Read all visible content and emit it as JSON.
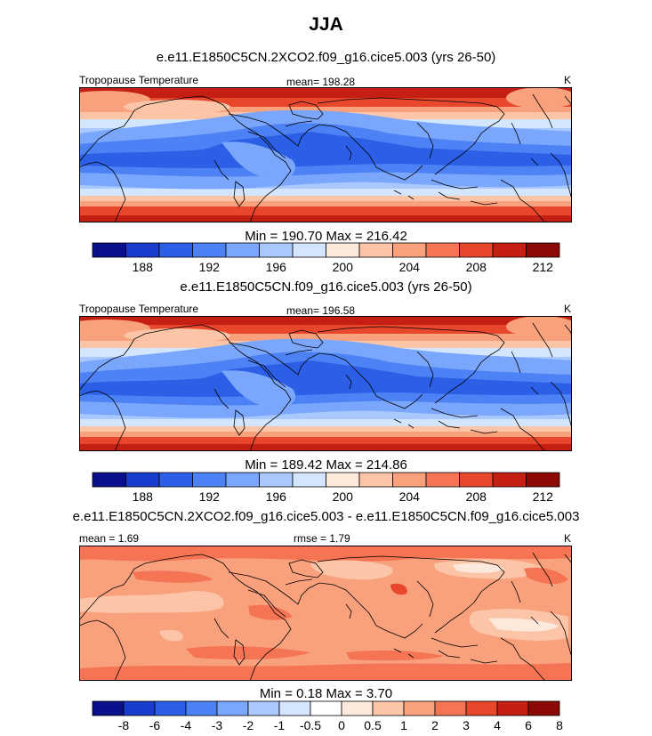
{
  "title": "JJA",
  "chart_data": [
    {
      "type": "heatmap",
      "title": "e.e11.E1850C5CN.2XCO2.f09_g16.cice5.003 (yrs 26-50)",
      "variable": "Tropopause Temperature",
      "units": "K",
      "mean_text": "mean= 198.28",
      "minmax_text": "Min = 190.70 Max = 216.42",
      "min": 190.7,
      "max": 216.42,
      "colorbar_ticks": [
        "188",
        "192",
        "196",
        "200",
        "204",
        "208",
        "212"
      ],
      "colors": [
        "#0a0f8c",
        "#1a3ccc",
        "#2a5fe6",
        "#4c82f5",
        "#7aa6fb",
        "#a9c8fd",
        "#d4e6fe",
        "#fde8dc",
        "#fcc5a8",
        "#f9a07c",
        "#f57453",
        "#e8472c",
        "#c41f12",
        "#8c0a05"
      ]
    },
    {
      "type": "heatmap",
      "title": "e.e11.E1850C5CN.f09_g16.cice5.003 (yrs 26-50)",
      "variable": "Tropopause Temperature",
      "units": "K",
      "mean_text": "mean= 196.58",
      "minmax_text": "Min = 189.42 Max = 214.86",
      "min": 189.42,
      "max": 214.86,
      "colorbar_ticks": [
        "188",
        "192",
        "196",
        "200",
        "204",
        "208",
        "212"
      ],
      "colors": [
        "#0a0f8c",
        "#1a3ccc",
        "#2a5fe6",
        "#4c82f5",
        "#7aa6fb",
        "#a9c8fd",
        "#d4e6fe",
        "#fde8dc",
        "#fcc5a8",
        "#f9a07c",
        "#f57453",
        "#e8472c",
        "#c41f12",
        "#8c0a05"
      ]
    },
    {
      "type": "heatmap",
      "title": "e.e11.E1850C5CN.2XCO2.f09_g16.cice5.003 - e.e11.E1850C5CN.f09_g16.cice5.003",
      "units": "K",
      "mean_text": "mean =   1.69",
      "rmse_text": "rmse =   1.79",
      "minmax_text": "Min =  0.18 Max =   3.70",
      "min": 0.18,
      "max": 3.7,
      "colorbar_ticks": [
        "-8",
        "-6",
        "-4",
        "-3",
        "-2",
        "-1",
        "-0.5",
        "0",
        "0.5",
        "1",
        "2",
        "3",
        "4",
        "6",
        "8"
      ],
      "colors": [
        "#0a0f8c",
        "#1a3ccc",
        "#2a5fe6",
        "#4c82f5",
        "#7aa6fb",
        "#a9c8fd",
        "#d4e6fe",
        "#ffffff",
        "#fde8dc",
        "#fcc5a8",
        "#f9a07c",
        "#f57453",
        "#e8472c",
        "#c41f12",
        "#8c0a05"
      ]
    }
  ]
}
